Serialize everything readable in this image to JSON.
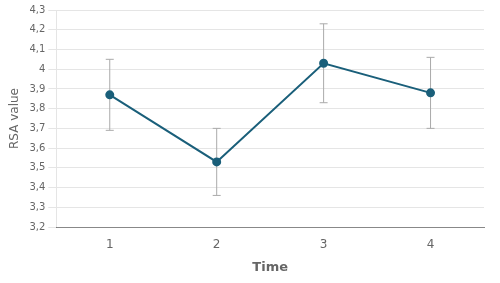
{
  "chart_data": {
    "type": "line",
    "x_label": "Time",
    "y_label": "RSA value",
    "x": [
      1,
      2,
      3,
      4
    ],
    "values": [
      3.87,
      3.53,
      4.03,
      3.88
    ],
    "yerr": [
      0.18,
      0.17,
      0.2,
      0.18
    ],
    "color": "#1a5f7a",
    "marker": "circle",
    "xlim": [
      0.5,
      4.5
    ],
    "xticks": [
      1,
      2,
      3,
      4
    ],
    "ylim": [
      3.2,
      4.3
    ],
    "yticks": [
      {
        "value": 3.2,
        "label": "3,2"
      },
      {
        "value": 3.3,
        "label": "3,3"
      },
      {
        "value": 3.4,
        "label": "3,4"
      },
      {
        "value": 3.5,
        "label": "3,5"
      },
      {
        "value": 3.6,
        "label": "3,6"
      },
      {
        "value": 3.7,
        "label": "3,7"
      },
      {
        "value": 3.8,
        "label": "3,8"
      },
      {
        "value": 3.9,
        "label": "3,9"
      },
      4,
      {
        "value": 4.1,
        "label": "4,1"
      },
      {
        "value": 4.2,
        "label": "4,2"
      },
      {
        "value": 4.3,
        "label": "4,3"
      }
    ],
    "grid": true
  }
}
